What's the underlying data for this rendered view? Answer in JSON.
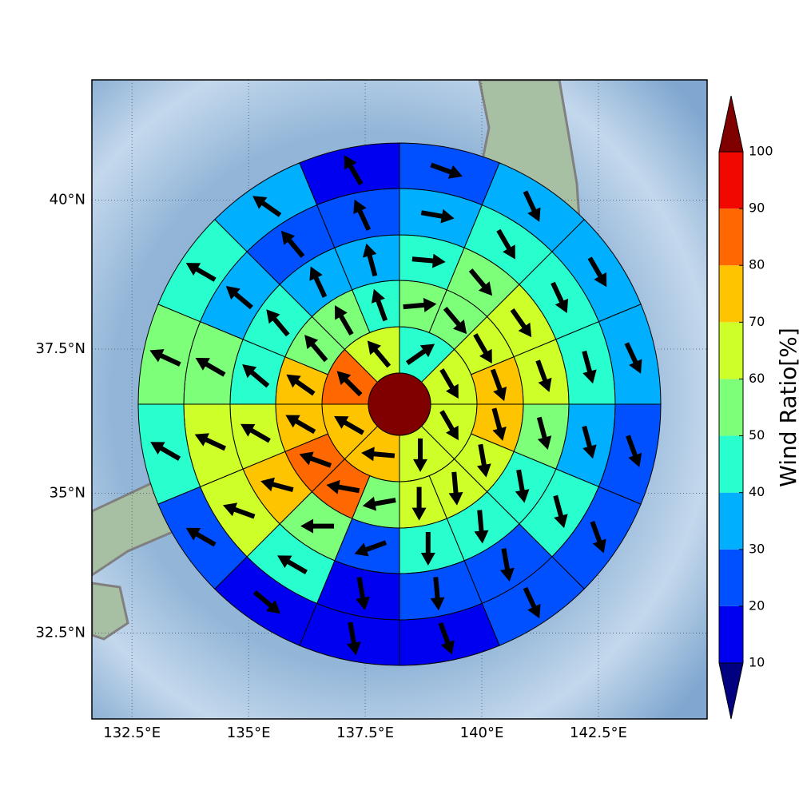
{
  "chart_data": {
    "type": "polar_sectors",
    "xlim": [
      131.64,
      144.83
    ],
    "ylim": [
      30.93,
      41.95
    ],
    "xticks": [
      {
        "value": 132.5,
        "label": "132.5°E"
      },
      {
        "value": 135,
        "label": "135°E"
      },
      {
        "value": 137.5,
        "label": "137.5°E"
      },
      {
        "value": 140,
        "label": "140°E"
      },
      {
        "value": 142.5,
        "label": "142.5°E"
      }
    ],
    "yticks": [
      {
        "value": 32.5,
        "label": "32.5°N"
      },
      {
        "value": 35,
        "label": "35°N"
      },
      {
        "value": 37.5,
        "label": "37.5°N"
      },
      {
        "value": 40,
        "label": "40°N"
      }
    ],
    "grid": true,
    "center_value": 100,
    "rings": [
      {
        "values": [
          45,
          65,
          65,
          65,
          75,
          75,
          85,
          65
        ],
        "directions": [
          55,
          150,
          150,
          180,
          275,
          300,
          315,
          320
        ]
      },
      {
        "values": [
          55,
          55,
          65,
          75,
          75,
          65,
          65,
          65,
          55,
          85,
          85,
          75,
          75,
          55,
          55,
          45
        ],
        "directions": [
          85,
          140,
          150,
          160,
          165,
          170,
          175,
          180,
          260,
          280,
          290,
          300,
          305,
          320,
          330,
          340
        ]
      },
      {
        "values": [
          45,
          55,
          65,
          65,
          55,
          45,
          45,
          45,
          25,
          55,
          75,
          65,
          45,
          45,
          35,
          35
        ],
        "directions": [
          95,
          140,
          145,
          160,
          165,
          170,
          175,
          180,
          250,
          270,
          285,
          300,
          310,
          320,
          335,
          345
        ]
      },
      {
        "values": [
          35,
          45,
          45,
          45,
          35,
          45,
          25,
          25,
          15,
          45,
          65,
          65,
          55,
          35,
          25,
          25
        ],
        "directions": [
          100,
          150,
          155,
          165,
          165,
          165,
          170,
          175,
          170,
          300,
          290,
          295,
          300,
          310,
          320,
          335
        ]
      },
      {
        "values": [
          25,
          35,
          35,
          35,
          25,
          25,
          25,
          15,
          15,
          15,
          25,
          45,
          55,
          45,
          35,
          15
        ],
        "directions": [
          110,
          155,
          150,
          155,
          160,
          160,
          155,
          160,
          170,
          130,
          300,
          300,
          295,
          300,
          305,
          330
        ]
      }
    ],
    "colorbar": {
      "label": "Wind Ratio[%]",
      "ticks": [
        10,
        20,
        30,
        40,
        50,
        60,
        70,
        80,
        90,
        100
      ],
      "colors": [
        "#0000f0",
        "#0050ff",
        "#00b0ff",
        "#29ffce",
        "#7dff7a",
        "#ceff29",
        "#ffc400",
        "#ff6800",
        "#f10800"
      ],
      "under_color": "#000080",
      "over_color": "#800000"
    }
  }
}
